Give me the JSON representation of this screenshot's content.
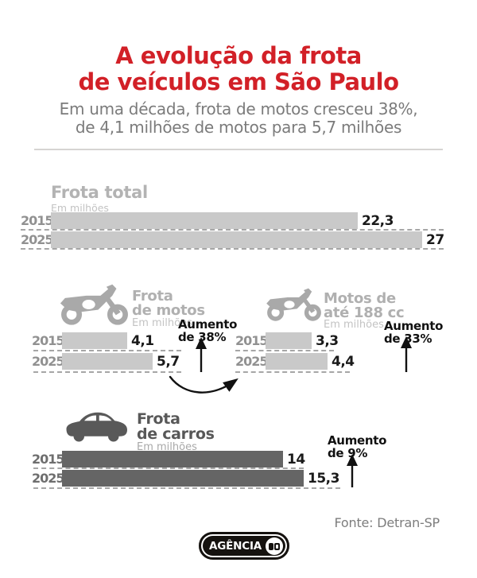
{
  "accent_color": "#d22027",
  "bar_colors": {
    "light": "#c9c9c9",
    "dark": "#656565"
  },
  "header": {
    "title_line1": "A evolução da frota",
    "title_line2": "de veículos em São Paulo",
    "subtitle_line1": "Em uma década, frota de motos cresceu 38%,",
    "subtitle_line2": "de 4,1 milhões de motos para 5,7 milhões"
  },
  "sections": {
    "total": {
      "title": "Frota total",
      "unit": "Em milhões",
      "rows": [
        {
          "year": "2015",
          "value": 22.3,
          "label": "22,3"
        },
        {
          "year": "2025",
          "value": 27,
          "label": "27"
        }
      ]
    },
    "motos": {
      "title_line1": "Frota",
      "title_line2": "de motos",
      "unit": "Em milhões",
      "increase_line1": "Aumento",
      "increase_line2": "de 38%",
      "rows": [
        {
          "year": "2015",
          "value": 4.1,
          "label": "4,1"
        },
        {
          "year": "2025",
          "value": 5.7,
          "label": "5,7"
        }
      ]
    },
    "motos188": {
      "title_line1": "Motos de",
      "title_line2": "até 188 cc",
      "unit": "Em milhões",
      "increase_line1": "Aumento",
      "increase_line2": "de 33%",
      "rows": [
        {
          "year": "2015",
          "value": 3.3,
          "label": "3,3"
        },
        {
          "year": "2025",
          "value": 4.4,
          "label": "4,4"
        }
      ]
    },
    "carros": {
      "title_line1": "Frota",
      "title_line2": "de carros",
      "unit": "Em milhões",
      "increase_line1": "Aumento",
      "increase_line2": "de 9%",
      "rows": [
        {
          "year": "2015",
          "value": 14,
          "label": "14"
        },
        {
          "year": "2025",
          "value": 15.3,
          "label": "15,3"
        }
      ]
    }
  },
  "footer": {
    "source": "Fonte: Detran-SP",
    "logo_text": "AGÊNCIA"
  },
  "chart_data": [
    {
      "type": "bar",
      "title": "Frota total",
      "ylabel": "Em milhões",
      "categories": [
        "2015",
        "2025"
      ],
      "values": [
        22.3,
        27
      ],
      "orientation": "horizontal",
      "bar_color": "#c9c9c9"
    },
    {
      "type": "bar",
      "title": "Frota de motos",
      "ylabel": "Em milhões",
      "categories": [
        "2015",
        "2025"
      ],
      "values": [
        4.1,
        5.7
      ],
      "orientation": "horizontal",
      "bar_color": "#c9c9c9",
      "annotation": "Aumento de 38%"
    },
    {
      "type": "bar",
      "title": "Motos de até 188 cc",
      "ylabel": "Em milhões",
      "categories": [
        "2015",
        "2025"
      ],
      "values": [
        3.3,
        4.4
      ],
      "orientation": "horizontal",
      "bar_color": "#c9c9c9",
      "annotation": "Aumento de 33%"
    },
    {
      "type": "bar",
      "title": "Frota de carros",
      "ylabel": "Em milhões",
      "categories": [
        "2015",
        "2025"
      ],
      "values": [
        14,
        15.3
      ],
      "orientation": "horizontal",
      "bar_color": "#656565",
      "annotation": "Aumento de 9%"
    }
  ]
}
